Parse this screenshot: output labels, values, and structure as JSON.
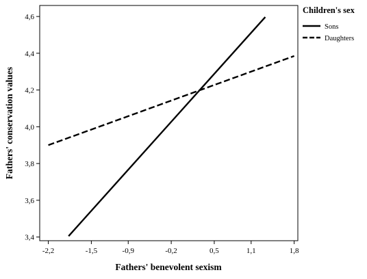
{
  "chart_data": {
    "type": "line",
    "xlabel": "Fathers' benevolent sexism",
    "ylabel": "Fathers' conservation values",
    "x_ticks": [
      "-2,2",
      "-1,5",
      "-0,9",
      "-0,2",
      "0,5",
      "1,1",
      "1,8"
    ],
    "x_tick_values": [
      -2.2,
      -1.5,
      -0.9,
      -0.2,
      0.5,
      1.1,
      1.8
    ],
    "y_ticks": [
      "3,4",
      "3,6",
      "3,8",
      "4,0",
      "4,2",
      "4,4",
      "4,6"
    ],
    "y_tick_values": [
      3.4,
      3.6,
      3.8,
      4.0,
      4.2,
      4.4,
      4.6
    ],
    "xlim": [
      -2.34,
      1.86
    ],
    "ylim": [
      3.38,
      4.66
    ],
    "grid": false,
    "legend": {
      "title": "Children's sex",
      "position": "right"
    },
    "series": [
      {
        "name": "Sons",
        "style": "solid",
        "color": "#000000",
        "x": [
          -1.87,
          1.33
        ],
        "y": [
          3.405,
          4.597
        ]
      },
      {
        "name": "Daughters",
        "style": "dashed",
        "color": "#000000",
        "x": [
          -2.2,
          1.8
        ],
        "y": [
          3.9,
          4.385
        ]
      }
    ]
  }
}
